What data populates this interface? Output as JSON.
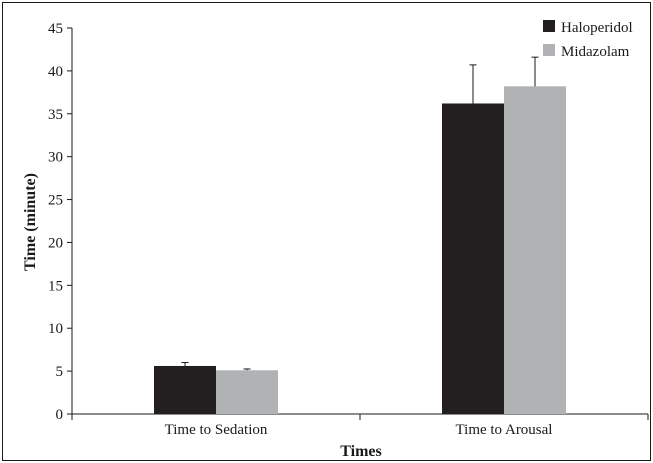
{
  "chart_data": {
    "type": "bar",
    "title": "",
    "xlabel": "Times",
    "ylabel": "Time (minute)",
    "ylim": [
      0,
      45
    ],
    "yticks": [
      0,
      5,
      10,
      15,
      20,
      25,
      30,
      35,
      40,
      45
    ],
    "categories": [
      "Time to  Sedation",
      "Time to Arousal"
    ],
    "series": [
      {
        "name": "Haloperidol",
        "color": "#231f20",
        "values": [
          5.6,
          36.2
        ],
        "errors": [
          0.4,
          4.5
        ]
      },
      {
        "name": "Midazolam",
        "color": "#b1b2b4",
        "values": [
          5.1,
          38.2
        ],
        "errors": [
          0.15,
          3.4
        ]
      }
    ],
    "grid": false,
    "legend": "top-right",
    "error_bars": "upper"
  }
}
